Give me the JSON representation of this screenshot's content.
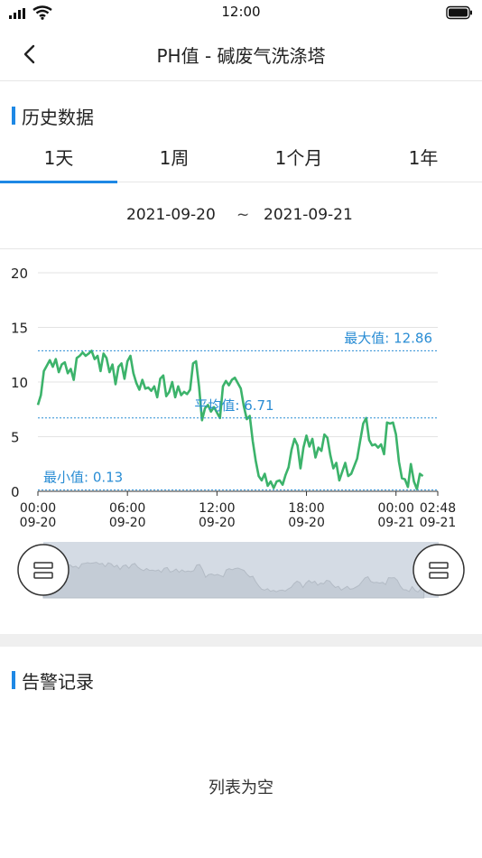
{
  "status": {
    "time": "12:00"
  },
  "nav": {
    "title": "PH值 - 碱废气洗涤塔"
  },
  "history": {
    "section_title": "历史数据",
    "tabs": [
      "1天",
      "1周",
      "1个月",
      "1年"
    ],
    "active_tab": 0,
    "date_start": "2021-09-20",
    "date_sep": "~",
    "date_end": "2021-09-21"
  },
  "chart_data": {
    "type": "line",
    "series": [
      {
        "color": "#3cb36b",
        "points": [
          [
            0,
            7.9
          ],
          [
            0.2,
            8.8
          ],
          [
            0.4,
            11.0
          ],
          [
            0.6,
            11.5
          ],
          [
            0.8,
            12.0
          ],
          [
            1.0,
            11.4
          ],
          [
            1.2,
            12.1
          ],
          [
            1.4,
            10.9
          ],
          [
            1.6,
            11.6
          ],
          [
            1.8,
            11.8
          ],
          [
            2.0,
            10.8
          ],
          [
            2.2,
            11.2
          ],
          [
            2.4,
            10.2
          ],
          [
            2.6,
            12.2
          ],
          [
            2.8,
            12.4
          ],
          [
            3.0,
            12.7
          ],
          [
            3.2,
            12.4
          ],
          [
            3.4,
            12.6
          ],
          [
            3.6,
            12.86
          ],
          [
            3.8,
            12.1
          ],
          [
            4.0,
            12.4
          ],
          [
            4.2,
            11.0
          ],
          [
            4.4,
            12.6
          ],
          [
            4.6,
            12.2
          ],
          [
            4.8,
            10.9
          ],
          [
            5.0,
            11.6
          ],
          [
            5.2,
            9.8
          ],
          [
            5.4,
            11.4
          ],
          [
            5.6,
            11.7
          ],
          [
            5.8,
            10.3
          ],
          [
            6.0,
            11.9
          ],
          [
            6.2,
            12.4
          ],
          [
            6.4,
            10.8
          ],
          [
            6.6,
            9.9
          ],
          [
            6.8,
            9.3
          ],
          [
            7.0,
            10.2
          ],
          [
            7.2,
            9.4
          ],
          [
            7.4,
            9.5
          ],
          [
            7.6,
            9.2
          ],
          [
            7.8,
            9.6
          ],
          [
            8.0,
            8.6
          ],
          [
            8.2,
            10.3
          ],
          [
            8.4,
            10.6
          ],
          [
            8.6,
            8.7
          ],
          [
            8.8,
            9.1
          ],
          [
            9.0,
            10.0
          ],
          [
            9.2,
            8.6
          ],
          [
            9.4,
            9.6
          ],
          [
            9.6,
            8.8
          ],
          [
            9.8,
            9.1
          ],
          [
            10.0,
            8.9
          ],
          [
            10.2,
            9.3
          ],
          [
            10.4,
            11.7
          ],
          [
            10.6,
            11.9
          ],
          [
            10.8,
            9.6
          ],
          [
            11.0,
            6.5
          ],
          [
            11.2,
            7.6
          ],
          [
            11.4,
            7.9
          ],
          [
            11.6,
            7.3
          ],
          [
            11.8,
            7.7
          ],
          [
            12.0,
            7.2
          ],
          [
            12.2,
            6.7
          ],
          [
            12.4,
            9.6
          ],
          [
            12.6,
            10.1
          ],
          [
            12.8,
            9.7
          ],
          [
            13.0,
            10.2
          ],
          [
            13.2,
            10.4
          ],
          [
            13.4,
            9.9
          ],
          [
            13.6,
            9.4
          ],
          [
            13.8,
            7.8
          ],
          [
            14.0,
            6.6
          ],
          [
            14.2,
            6.9
          ],
          [
            14.4,
            4.6
          ],
          [
            14.6,
            2.8
          ],
          [
            14.8,
            1.4
          ],
          [
            15.0,
            1.0
          ],
          [
            15.2,
            1.6
          ],
          [
            15.4,
            0.5
          ],
          [
            15.6,
            0.9
          ],
          [
            15.8,
            0.3
          ],
          [
            16.0,
            0.9
          ],
          [
            16.2,
            1.0
          ],
          [
            16.4,
            0.6
          ],
          [
            16.6,
            1.5
          ],
          [
            16.8,
            2.2
          ],
          [
            17.0,
            3.8
          ],
          [
            17.2,
            4.8
          ],
          [
            17.4,
            4.2
          ],
          [
            17.6,
            2.1
          ],
          [
            17.8,
            4.0
          ],
          [
            18.0,
            5.1
          ],
          [
            18.2,
            4.1
          ],
          [
            18.4,
            4.8
          ],
          [
            18.6,
            3.1
          ],
          [
            18.8,
            4.0
          ],
          [
            19.0,
            3.7
          ],
          [
            19.2,
            5.2
          ],
          [
            19.4,
            4.9
          ],
          [
            19.6,
            3.3
          ],
          [
            19.8,
            2.1
          ],
          [
            20.0,
            2.6
          ],
          [
            20.2,
            1.0
          ],
          [
            20.4,
            1.8
          ],
          [
            20.6,
            2.6
          ],
          [
            20.8,
            1.4
          ],
          [
            21.0,
            1.6
          ],
          [
            21.2,
            2.3
          ],
          [
            21.4,
            3.0
          ],
          [
            21.6,
            4.6
          ],
          [
            21.8,
            6.2
          ],
          [
            22.0,
            6.71
          ],
          [
            22.2,
            4.7
          ],
          [
            22.4,
            4.2
          ],
          [
            22.6,
            4.3
          ],
          [
            22.8,
            4.0
          ],
          [
            23.0,
            4.3
          ],
          [
            23.2,
            3.4
          ],
          [
            23.4,
            6.3
          ],
          [
            23.6,
            6.2
          ],
          [
            23.8,
            6.3
          ],
          [
            24.0,
            5.2
          ],
          [
            24.2,
            2.7
          ],
          [
            24.4,
            1.2
          ],
          [
            24.6,
            1.1
          ],
          [
            24.8,
            0.4
          ],
          [
            25.0,
            2.5
          ],
          [
            25.2,
            0.9
          ],
          [
            25.4,
            0.2
          ],
          [
            25.6,
            1.6
          ],
          [
            25.8,
            1.4
          ]
        ]
      }
    ],
    "x_range": [
      0,
      26.8
    ],
    "ylim": [
      0,
      20
    ],
    "y_ticks": [
      0,
      5,
      10,
      15,
      20
    ],
    "x_ticks": [
      {
        "x": 0,
        "time": "00:00",
        "date": "09-20"
      },
      {
        "x": 6,
        "time": "06:00",
        "date": "09-20"
      },
      {
        "x": 12,
        "time": "12:00",
        "date": "09-20"
      },
      {
        "x": 18,
        "time": "18:00",
        "date": "09-20"
      },
      {
        "x": 24,
        "time": "00:00",
        "date": "09-21"
      },
      {
        "x": 26.8,
        "time": "02:48",
        "date": "09-21"
      }
    ],
    "mark_lines": [
      {
        "value": 12.86,
        "label": "最大值: 12.86",
        "align": "right"
      },
      {
        "value": 6.71,
        "label": "平均值: 6.71",
        "align": "center"
      },
      {
        "value": 0.13,
        "label": "最小值: 0.13",
        "align": "left"
      }
    ],
    "grid": true,
    "legend": "none"
  },
  "alarm": {
    "section_title": "告警记录",
    "empty_text": "列表为空"
  },
  "colors": {
    "accent": "#1e88e5",
    "line": "#3cb36b",
    "mark": "#2a8dd4",
    "slider_fill": "#d4dbe4"
  }
}
